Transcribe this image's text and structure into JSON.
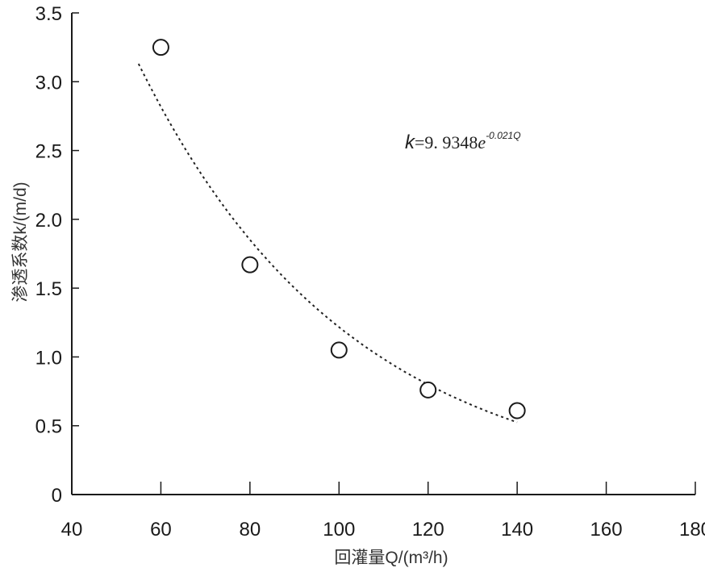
{
  "chart_data": {
    "type": "scatter",
    "title": "",
    "xlabel": "回灌量Q/(m³/h)",
    "ylabel": "渗透系数k/(m/d)",
    "xlim": [
      40,
      180
    ],
    "ylim": [
      0,
      3.5
    ],
    "x_ticks": [
      "40",
      "60",
      "80",
      "100",
      "120",
      "140",
      "160",
      "180"
    ],
    "y_ticks": [
      "0",
      "0.5",
      "1.0",
      "1.5",
      "2.0",
      "2.5",
      "3.0",
      "3.5"
    ],
    "grid": false,
    "legend": "none",
    "series": [
      {
        "type": "scatter",
        "marker": "open-circle",
        "points": [
          {
            "x": 60,
            "y": 3.25
          },
          {
            "x": 80,
            "y": 1.67
          },
          {
            "x": 100,
            "y": 1.05
          },
          {
            "x": 120,
            "y": 0.76
          },
          {
            "x": 140,
            "y": 0.61
          }
        ]
      },
      {
        "type": "fit-line",
        "style": "dotted",
        "coefficient": 9.9348,
        "exponent_rate": -0.021,
        "x_range": [
          55,
          140
        ]
      }
    ],
    "annotation": {
      "var": "k",
      "equals_value": "=9. 9348",
      "base": "e",
      "exponent": "-0.021Q"
    }
  },
  "colors": {
    "axis": "#1a1a1a",
    "marker": "#1a1a1a",
    "curve": "#222222"
  }
}
